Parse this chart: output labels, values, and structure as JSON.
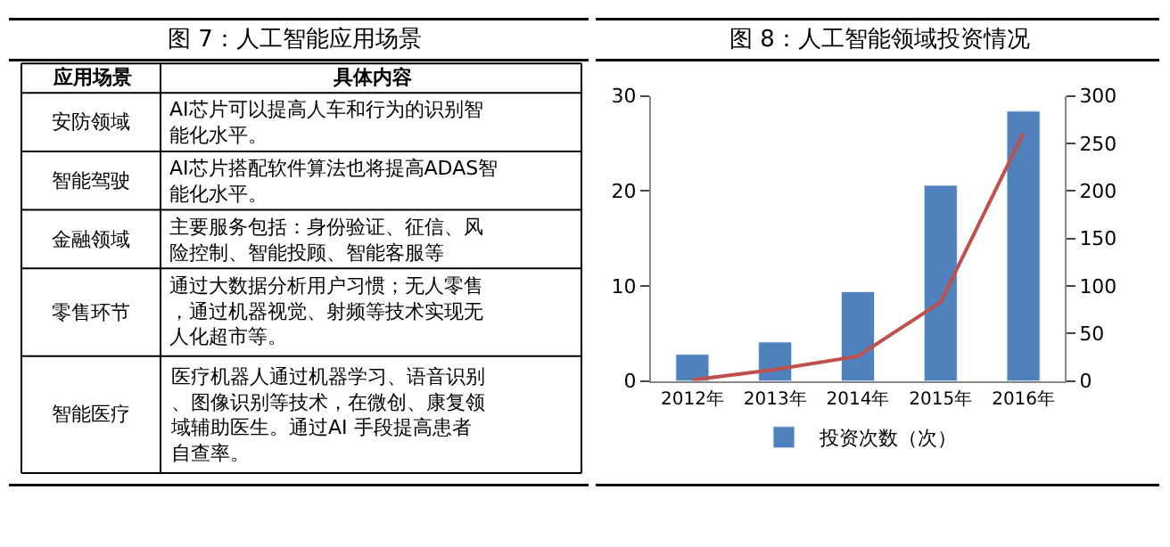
{
  "chart_data": [
    {
      "type": "other",
      "title": "图 7：人工智能应用场景",
      "annotations": [
        "应用场景",
        "具体内容",
        "安防领域",
        "AI芯片可以提高人车和行为的识别智能化水平。",
        "智能驾驶",
        "AI芯片搭配软件算法也将提高ADAS智能化水平。",
        "金融领域",
        "主要服务包括：身份验证、征信、风险控制、智能投顾、智能客服等",
        "零售环节",
        "通过大数据分析用户习惯；无人零售，通过机器视觉、射频等技术实现无人化超市等。",
        "智能医疗",
        "医疗机器人通过机器学习、语音识别、图像识别等技术，在微创、康复领域辅助医生。通过AI 手段提高患者自查率。"
      ]
    },
    {
      "type": "bar",
      "title": "图 8：人工智能领域投资情况",
      "categories": [
        "2012年",
        "2013年",
        "2014年",
        "2015年",
        "2016年"
      ],
      "series": [
        {
          "name": "投资次数（次）",
          "color": "#4f81bd",
          "values": [
            2.8,
            4.1,
            9.4,
            20.6,
            28.4
          ]
        },
        {
          "type": "line",
          "axis": "y2",
          "color": "#c0504d",
          "values": [
            1,
            12,
            26,
            83,
            261
          ]
        }
      ],
      "ylim": [
        0,
        30
      ],
      "yticks": [
        0,
        10,
        20,
        30
      ],
      "y2lim": [
        0,
        300
      ],
      "y2ticks": [
        0,
        50,
        100,
        150,
        200,
        250,
        300
      ],
      "legend": "bottom"
    }
  ]
}
